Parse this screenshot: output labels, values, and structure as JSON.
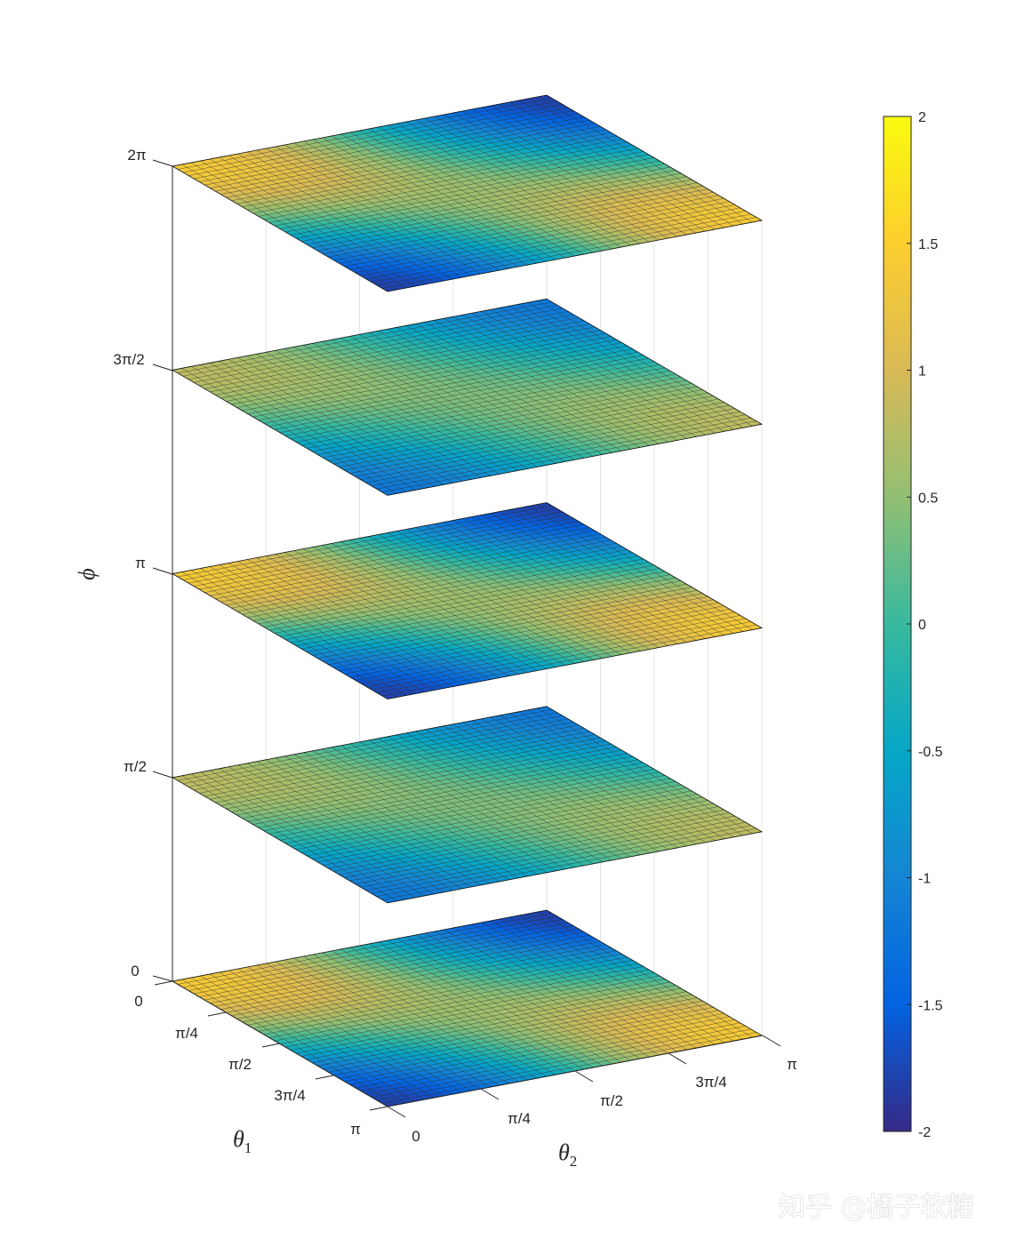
{
  "chart_data": {
    "type": "surface",
    "z_levels": [
      0,
      1.5708,
      3.1416,
      4.7124,
      6.2832
    ],
    "x_axis": {
      "label": "θ",
      "label_subscript": "2",
      "ticks": [
        "0",
        "π/4",
        "π/2",
        "3π/4",
        "π"
      ],
      "range": [
        0,
        3.1416
      ]
    },
    "y_axis": {
      "label": "θ",
      "label_subscript": "1",
      "ticks": [
        "0",
        "π/4",
        "π/2",
        "3π/4",
        "π"
      ],
      "range": [
        0,
        3.1416
      ]
    },
    "z_axis": {
      "label": "ϕ",
      "ticks": [
        "0",
        "π/2",
        "π",
        "3π/2",
        "2π"
      ],
      "range": [
        0,
        6.2832
      ]
    },
    "colorbar": {
      "range": [
        -2,
        2
      ],
      "ticks": [
        "2",
        "1.5",
        "1",
        "0.5",
        "0",
        "-0.5",
        "-1",
        "-1.5",
        "-2"
      ],
      "colormap": "parula"
    },
    "grid": true,
    "mesh_resolution": 40
  },
  "watermark": "知乎 @橘子软糖",
  "colors": {
    "parula": [
      "#352a87",
      "#0363e1",
      "#1485d4",
      "#06a7c6",
      "#38b99e",
      "#92bf73",
      "#d9ba56",
      "#fcce2e",
      "#f9fb0e"
    ],
    "mesh_line": "#1a1a1a"
  }
}
